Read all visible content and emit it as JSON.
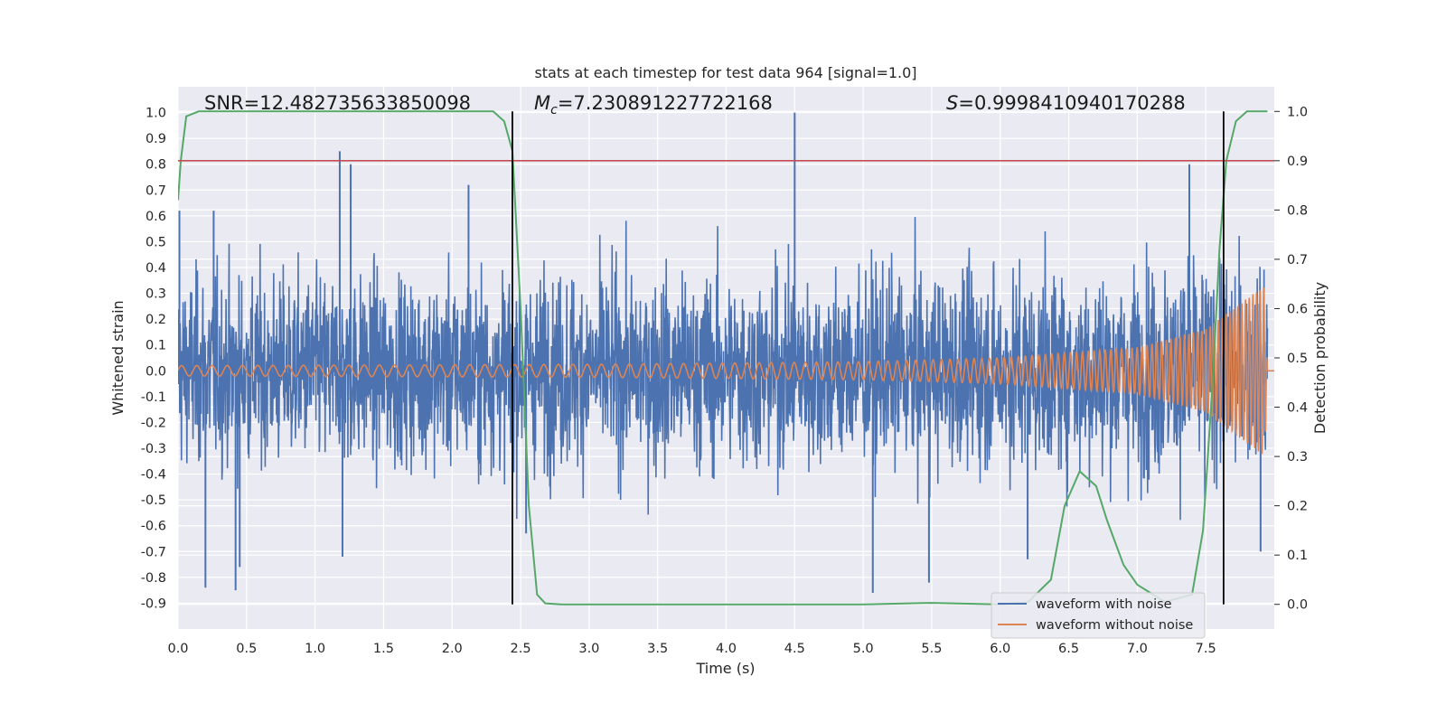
{
  "chart_data": {
    "type": "line",
    "title": "stats at each timestep for test data 964 [signal=1.0]",
    "xlabel": "Time (s)",
    "ylabel_left": "Whitened strain",
    "ylabel_right": "Detection probability",
    "xlim": [
      0.0,
      8.0
    ],
    "ylim_left": [
      -1.0,
      1.1
    ],
    "ylim_right": [
      -0.05,
      1.05
    ],
    "x_ticks": [
      "0.0",
      "0.5",
      "1.0",
      "1.5",
      "2.0",
      "2.5",
      "3.0",
      "3.5",
      "4.0",
      "4.5",
      "5.0",
      "5.5",
      "6.0",
      "6.5",
      "7.0",
      "7.5"
    ],
    "y_left_ticks": [
      "1.0",
      "0.9",
      "0.8",
      "0.7",
      "0.6",
      "0.5",
      "0.4",
      "0.3",
      "0.2",
      "0.1",
      "0.0",
      "-0.1",
      "-0.2",
      "-0.3",
      "-0.4",
      "-0.5",
      "-0.6",
      "-0.7",
      "-0.8",
      "-0.9"
    ],
    "y_right_ticks": [
      "1.0",
      "0.9",
      "0.8",
      "0.7",
      "0.6",
      "0.5",
      "0.4",
      "0.3",
      "0.2",
      "0.1",
      "0.0"
    ],
    "grid": true,
    "legend_position": "bottom-right",
    "annotations": {
      "snr": "SNR=12.482735633850098",
      "mc_symbol": "M",
      "mc_sub": "c",
      "mc_value": "=7.230891227722168",
      "s_symbol": "S",
      "s_value": "=0.9998410940170288"
    },
    "threshold": {
      "axis": "right",
      "value": 0.9
    },
    "vertical_markers": [
      2.44,
      7.63
    ],
    "series": [
      {
        "name": "waveform with noise",
        "axis": "left",
        "style": "dense noisy strain",
        "envelope_upper": [
          [
            0.0,
            0.6
          ],
          [
            1.0,
            0.6
          ],
          [
            2.0,
            0.6
          ],
          [
            3.0,
            0.62
          ],
          [
            4.0,
            0.62
          ],
          [
            5.0,
            0.62
          ],
          [
            6.0,
            0.63
          ],
          [
            7.0,
            0.66
          ],
          [
            7.5,
            0.7
          ],
          [
            7.9,
            0.6
          ]
        ],
        "envelope_lower": [
          [
            0.0,
            -0.6
          ],
          [
            1.0,
            -0.6
          ],
          [
            2.0,
            -0.6
          ],
          [
            3.0,
            -0.62
          ],
          [
            4.0,
            -0.62
          ],
          [
            5.0,
            -0.62
          ],
          [
            6.0,
            -0.63
          ],
          [
            7.0,
            -0.66
          ],
          [
            7.5,
            -0.7
          ],
          [
            7.9,
            -0.6
          ]
        ],
        "spikes": [
          [
            0.01,
            0.62
          ],
          [
            0.2,
            -0.84
          ],
          [
            0.26,
            0.62
          ],
          [
            0.42,
            -0.85
          ],
          [
            0.45,
            -0.76
          ],
          [
            1.18,
            0.85
          ],
          [
            1.26,
            0.8
          ],
          [
            1.2,
            -0.72
          ],
          [
            2.12,
            0.72
          ],
          [
            2.54,
            -0.63
          ],
          [
            4.5,
            1.0
          ],
          [
            5.07,
            -0.86
          ],
          [
            5.48,
            -0.82
          ],
          [
            6.2,
            -0.73
          ],
          [
            7.38,
            0.8
          ],
          [
            7.9,
            -0.7
          ]
        ]
      },
      {
        "name": "waveform without noise",
        "axis": "left",
        "style": "chirp",
        "amplitude": [
          [
            0.0,
            0.02
          ],
          [
            3.0,
            0.025
          ],
          [
            5.0,
            0.035
          ],
          [
            6.0,
            0.05
          ],
          [
            7.0,
            0.09
          ],
          [
            7.5,
            0.16
          ],
          [
            7.8,
            0.28
          ],
          [
            7.93,
            0.33
          ],
          [
            7.95,
            0.0
          ],
          [
            8.0,
            0.0
          ]
        ]
      },
      {
        "name": "detection probability",
        "axis": "right",
        "points": [
          [
            0.0,
            0.82
          ],
          [
            0.02,
            0.9
          ],
          [
            0.06,
            0.99
          ],
          [
            0.15,
            1.0
          ],
          [
            2.3,
            1.0
          ],
          [
            2.38,
            0.98
          ],
          [
            2.44,
            0.92
          ],
          [
            2.5,
            0.6
          ],
          [
            2.56,
            0.2
          ],
          [
            2.62,
            0.02
          ],
          [
            2.68,
            0.002
          ],
          [
            2.8,
            0.0
          ],
          [
            5.0,
            0.0
          ],
          [
            5.5,
            0.003
          ],
          [
            6.0,
            0.0
          ],
          [
            6.2,
            0.004
          ],
          [
            6.37,
            0.05
          ],
          [
            6.47,
            0.2
          ],
          [
            6.58,
            0.27
          ],
          [
            6.7,
            0.24
          ],
          [
            6.78,
            0.17
          ],
          [
            6.9,
            0.08
          ],
          [
            7.0,
            0.04
          ],
          [
            7.2,
            0.005
          ],
          [
            7.4,
            0.02
          ],
          [
            7.48,
            0.15
          ],
          [
            7.55,
            0.45
          ],
          [
            7.6,
            0.72
          ],
          [
            7.65,
            0.9
          ],
          [
            7.72,
            0.98
          ],
          [
            7.8,
            1.0
          ],
          [
            7.95,
            1.0
          ]
        ]
      }
    ]
  }
}
